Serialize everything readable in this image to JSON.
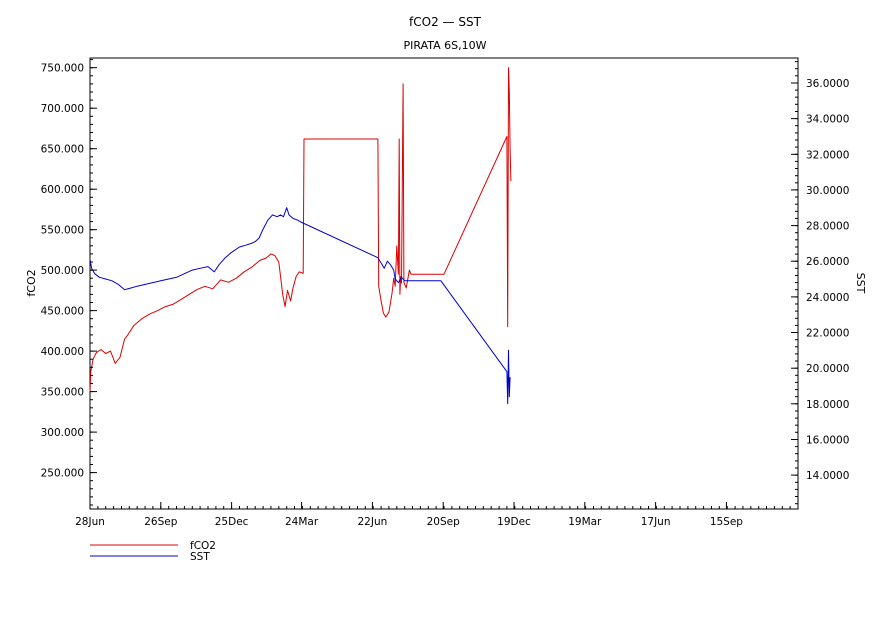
{
  "chart_data": {
    "type": "line",
    "title": "fCO2  —  SST",
    "subtitle": "PIRATA 6S,10W",
    "x_ticks": [
      "28Jun",
      "26Sep",
      "25Dec",
      "24Mar",
      "22Jun",
      "20Sep",
      "19Dec",
      "19Mar",
      "17Jun",
      "15Sep"
    ],
    "x_tick_days": [
      0,
      90,
      180,
      269,
      359,
      449,
      539,
      629,
      719,
      809
    ],
    "xlim_days": [
      0,
      900
    ],
    "x_unit": "days from 28Jun",
    "y_left": {
      "label": "fCO2",
      "range": [
        205,
        762
      ],
      "ticks": [
        250,
        300,
        350,
        400,
        450,
        500,
        550,
        600,
        650,
        700,
        750
      ],
      "tick_labels": [
        "250.000",
        "300.000",
        "350.000",
        "400.000",
        "450.000",
        "500.000",
        "550.000",
        "600.000",
        "650.000",
        "700.000",
        "750.000"
      ]
    },
    "y_right": {
      "label": "SST",
      "range": [
        12.1,
        37.4
      ],
      "ticks": [
        14,
        16,
        18,
        20,
        22,
        24,
        26,
        28,
        30,
        32,
        34,
        36
      ],
      "tick_labels": [
        "14.0000",
        "16.0000",
        "18.0000",
        "20.0000",
        "22.0000",
        "24.0000",
        "26.0000",
        "28.0000",
        "30.0000",
        "32.0000",
        "34.0000",
        "36.0000"
      ]
    },
    "series": [
      {
        "name": "fCO2",
        "axis": "left",
        "color": "#dd0000",
        "points": [
          [
            0,
            350
          ],
          [
            1,
            375
          ],
          [
            4,
            390
          ],
          [
            8,
            398
          ],
          [
            14,
            402
          ],
          [
            20,
            397
          ],
          [
            26,
            400
          ],
          [
            32,
            385
          ],
          [
            38,
            392
          ],
          [
            44,
            415
          ],
          [
            48,
            420
          ],
          [
            56,
            432
          ],
          [
            66,
            440
          ],
          [
            76,
            446
          ],
          [
            86,
            450
          ],
          [
            96,
            455
          ],
          [
            106,
            458
          ],
          [
            116,
            464
          ],
          [
            126,
            470
          ],
          [
            136,
            476
          ],
          [
            146,
            480
          ],
          [
            156,
            477
          ],
          [
            166,
            488
          ],
          [
            176,
            485
          ],
          [
            186,
            490
          ],
          [
            196,
            498
          ],
          [
            206,
            504
          ],
          [
            216,
            512
          ],
          [
            224,
            515
          ],
          [
            230,
            520
          ],
          [
            235,
            518
          ],
          [
            240,
            510
          ],
          [
            245,
            470
          ],
          [
            248,
            455
          ],
          [
            251,
            475
          ],
          [
            255,
            462
          ],
          [
            258,
            478
          ],
          [
            262,
            492
          ],
          [
            266,
            498
          ],
          [
            271,
            496
          ],
          [
            272,
            662
          ],
          [
            366,
            662
          ],
          [
            367,
            480
          ],
          [
            370,
            462
          ],
          [
            373,
            447
          ],
          [
            376,
            442
          ],
          [
            380,
            448
          ],
          [
            384,
            472
          ],
          [
            386,
            490
          ],
          [
            388,
            480
          ],
          [
            390,
            530
          ],
          [
            392,
            495
          ],
          [
            393,
            662
          ],
          [
            394,
            470
          ],
          [
            395,
            492
          ],
          [
            396,
            484
          ],
          [
            398,
            730
          ],
          [
            399,
            485
          ],
          [
            402,
            478
          ],
          [
            406,
            500
          ],
          [
            408,
            495
          ],
          [
            450,
            495
          ],
          [
            530,
            665
          ],
          [
            531,
            430
          ],
          [
            532,
            750
          ],
          [
            533,
            720
          ],
          [
            534,
            650
          ],
          [
            535,
            610
          ]
        ]
      },
      {
        "name": "SST",
        "axis": "right",
        "color": "#0000cc",
        "points": [
          [
            0,
            26.1
          ],
          [
            2,
            25.6
          ],
          [
            6,
            25.3
          ],
          [
            12,
            25.1
          ],
          [
            20,
            25.0
          ],
          [
            28,
            24.9
          ],
          [
            36,
            24.7
          ],
          [
            44,
            24.4
          ],
          [
            52,
            24.5
          ],
          [
            60,
            24.6
          ],
          [
            70,
            24.7
          ],
          [
            80,
            24.8
          ],
          [
            90,
            24.9
          ],
          [
            100,
            25.0
          ],
          [
            110,
            25.1
          ],
          [
            120,
            25.3
          ],
          [
            130,
            25.5
          ],
          [
            140,
            25.6
          ],
          [
            150,
            25.7
          ],
          [
            158,
            25.4
          ],
          [
            164,
            25.8
          ],
          [
            172,
            26.2
          ],
          [
            180,
            26.5
          ],
          [
            190,
            26.8
          ],
          [
            198,
            26.9
          ],
          [
            205,
            27.0
          ],
          [
            210,
            27.1
          ],
          [
            215,
            27.3
          ],
          [
            220,
            27.8
          ],
          [
            226,
            28.3
          ],
          [
            232,
            28.6
          ],
          [
            238,
            28.5
          ],
          [
            242,
            28.6
          ],
          [
            246,
            28.5
          ],
          [
            250,
            29.0
          ],
          [
            253,
            28.6
          ],
          [
            258,
            28.4
          ],
          [
            264,
            28.3
          ],
          [
            268,
            28.2
          ],
          [
            366,
            26.2
          ],
          [
            370,
            25.9
          ],
          [
            374,
            25.6
          ],
          [
            378,
            26.0
          ],
          [
            382,
            25.8
          ],
          [
            386,
            25.5
          ],
          [
            388,
            25.0
          ],
          [
            392,
            24.8
          ],
          [
            396,
            25.1
          ],
          [
            400,
            24.9
          ],
          [
            405,
            24.9
          ],
          [
            410,
            24.9
          ],
          [
            446,
            24.9
          ],
          [
            530,
            19.8
          ],
          [
            531,
            18.0
          ],
          [
            532,
            21.0
          ],
          [
            533,
            18.4
          ],
          [
            534,
            19.5
          ]
        ]
      }
    ],
    "legend": {
      "placement": "bottom-left",
      "items": [
        {
          "name": "fCO2",
          "color": "#dd0000"
        },
        {
          "name": "SST",
          "color": "#0000cc"
        }
      ]
    },
    "grid": false
  }
}
